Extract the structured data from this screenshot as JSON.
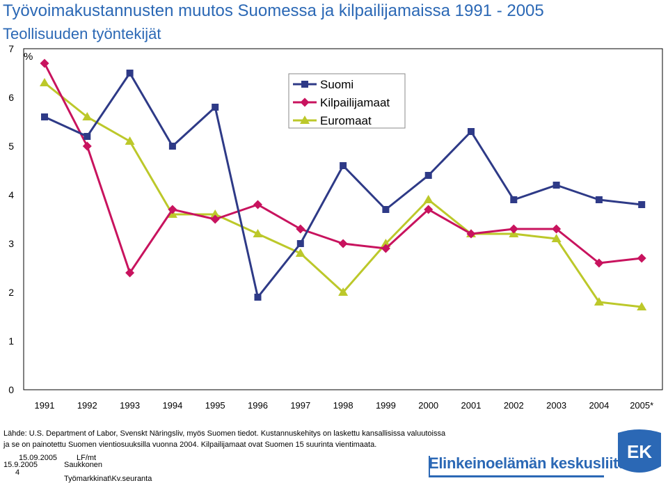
{
  "title": "Työvoimakustannusten muutos Suomessa ja kilpailijamaissa 1991 - 2005",
  "subtitle": "Teollisuuden työntekijät",
  "colors": {
    "suomi": "#2e3a87",
    "kilpailijamaat": "#c8135e",
    "euromaat": "#bcc82a",
    "title": "#2b68b5"
  },
  "chart_data": {
    "type": "line",
    "ylabel": "%",
    "ylim": [
      0,
      7
    ],
    "yticks": [
      "0",
      "1",
      "2",
      "3",
      "4",
      "5",
      "6",
      "7"
    ],
    "categories": [
      "1991",
      "1992",
      "1993",
      "1994",
      "1995",
      "1996",
      "1997",
      "1998",
      "1999",
      "2000",
      "2001",
      "2002",
      "2003",
      "2004",
      "2005*"
    ],
    "legend_position": "top-right",
    "grid": false,
    "series": [
      {
        "name": "Suomi",
        "marker": "square",
        "values": [
          5.6,
          5.2,
          6.5,
          5.0,
          5.8,
          1.9,
          3.0,
          4.6,
          3.7,
          4.4,
          5.3,
          3.9,
          4.2,
          3.9,
          3.8
        ]
      },
      {
        "name": "Kilpailijamaat",
        "marker": "diamond",
        "values": [
          6.7,
          5.0,
          2.4,
          3.7,
          3.5,
          3.8,
          3.3,
          3.0,
          2.9,
          3.7,
          3.2,
          3.3,
          3.3,
          2.6,
          2.7
        ]
      },
      {
        "name": "Euromaat",
        "marker": "triangle",
        "values": [
          6.3,
          5.6,
          5.1,
          3.6,
          3.6,
          3.2,
          2.8,
          2.0,
          3.0,
          3.9,
          3.2,
          3.2,
          3.1,
          1.8,
          1.7
        ]
      }
    ]
  },
  "source_text": "Lähde: U.S. Department of Labor, Svenskt Näringsliv, myös Suomen tiedot. Kustannuskehitys on laskettu kansallisissa valuutoissa ja se on painotettu Suomen vientiosuuksilla vuonna 2004. Kilpailijamaat ovat Suomen 15 suurinta vientimaata.",
  "footer": {
    "date1": "15.09.2005",
    "author_code": "LF/mt",
    "date2": "15.9.2005",
    "author": "Saukkonen",
    "page": "4",
    "file": "Työmarkkinat\\Kv.seuranta"
  },
  "logo": {
    "text": "Elinkeinoelämän keskusliitto",
    "mark": "EK"
  }
}
